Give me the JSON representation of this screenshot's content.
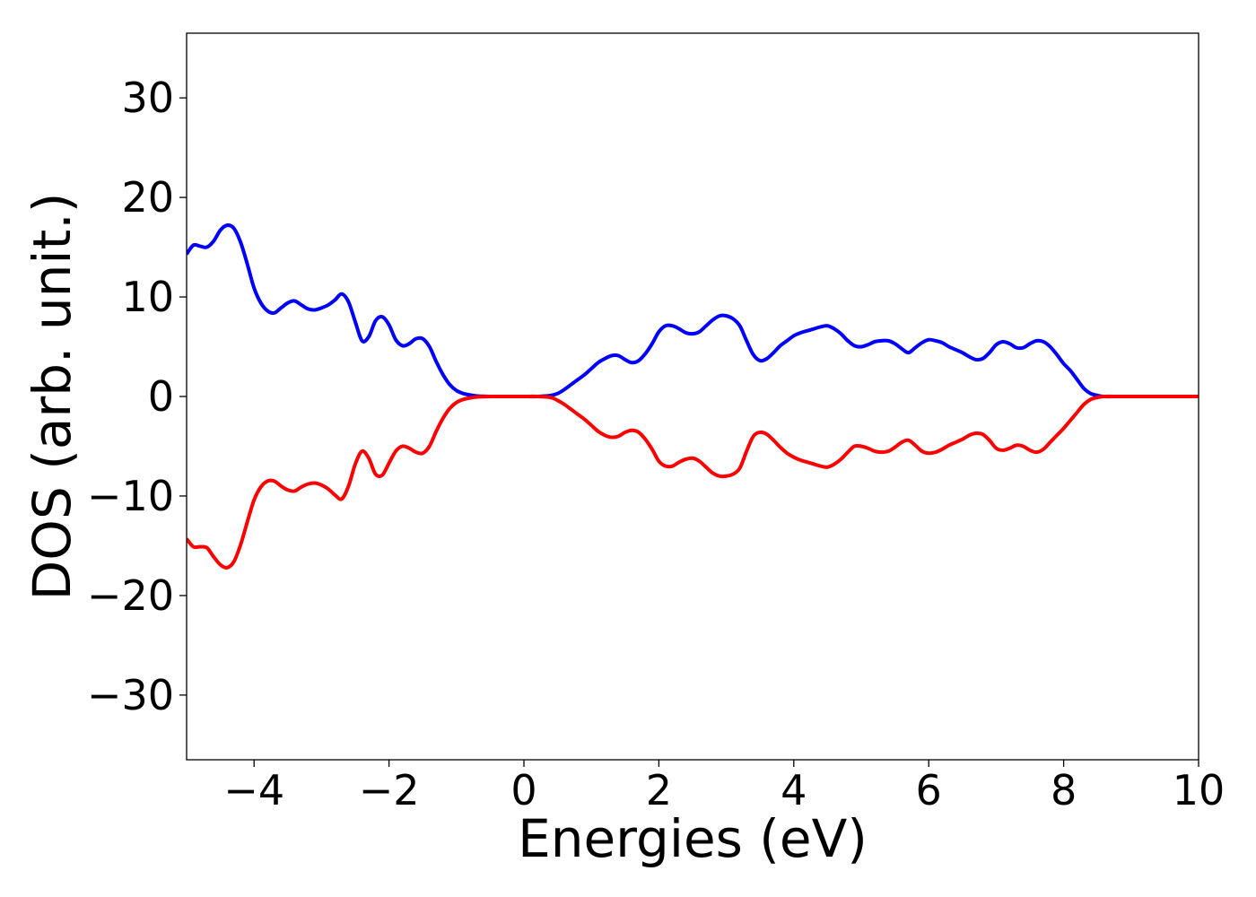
{
  "chart_data": {
    "type": "line",
    "title": "",
    "xlabel": "Energies (eV)",
    "ylabel": "DOS (arb. unit.)",
    "xlim": [
      -5,
      10
    ],
    "ylim": [
      -36.5,
      36.5
    ],
    "grid": false,
    "legend": "none",
    "xticks": [
      {
        "value": -4,
        "label": "−4"
      },
      {
        "value": -2,
        "label": "−2"
      },
      {
        "value": 0,
        "label": "0"
      },
      {
        "value": 2,
        "label": "2"
      },
      {
        "value": 4,
        "label": "4"
      },
      {
        "value": 6,
        "label": "6"
      },
      {
        "value": 8,
        "label": "8"
      },
      {
        "value": 10,
        "label": "10"
      }
    ],
    "yticks": [
      {
        "value": 30,
        "label": "30"
      },
      {
        "value": 20,
        "label": "20"
      },
      {
        "value": 10,
        "label": "10"
      },
      {
        "value": 0,
        "label": "0"
      },
      {
        "value": -10,
        "label": "−10"
      },
      {
        "value": -20,
        "label": "−20"
      },
      {
        "value": -30,
        "label": "−30"
      }
    ],
    "series": [
      {
        "color": "#0000ff",
        "x": [
          -5.0,
          -4.9,
          -4.8,
          -4.7,
          -4.6,
          -4.5,
          -4.4,
          -4.3,
          -4.2,
          -4.1,
          -4.0,
          -3.9,
          -3.8,
          -3.7,
          -3.6,
          -3.5,
          -3.4,
          -3.3,
          -3.2,
          -3.1,
          -3.0,
          -2.9,
          -2.8,
          -2.7,
          -2.6,
          -2.5,
          -2.4,
          -2.3,
          -2.2,
          -2.1,
          -2.0,
          -1.9,
          -1.8,
          -1.7,
          -1.6,
          -1.5,
          -1.4,
          -1.3,
          -1.2,
          -1.1,
          -1.0,
          -0.9,
          -0.8,
          -0.7,
          -0.6,
          -0.5,
          -0.4,
          -0.2,
          0.0,
          0.2,
          0.4,
          0.5,
          0.6,
          0.7,
          0.8,
          0.9,
          1.0,
          1.1,
          1.2,
          1.3,
          1.4,
          1.5,
          1.6,
          1.7,
          1.8,
          1.9,
          2.0,
          2.1,
          2.2,
          2.3,
          2.4,
          2.5,
          2.6,
          2.7,
          2.8,
          2.9,
          3.0,
          3.1,
          3.2,
          3.3,
          3.4,
          3.5,
          3.6,
          3.7,
          3.8,
          3.9,
          4.0,
          4.1,
          4.2,
          4.3,
          4.4,
          4.5,
          4.6,
          4.7,
          4.8,
          4.9,
          5.0,
          5.1,
          5.2,
          5.3,
          5.4,
          5.5,
          5.6,
          5.7,
          5.8,
          5.9,
          6.0,
          6.1,
          6.2,
          6.3,
          6.4,
          6.5,
          6.6,
          6.7,
          6.8,
          6.9,
          7.0,
          7.1,
          7.2,
          7.3,
          7.4,
          7.5,
          7.6,
          7.7,
          7.8,
          7.9,
          8.0,
          8.1,
          8.2,
          8.3,
          8.4,
          8.5,
          8.6,
          8.8,
          9.0,
          9.5,
          10.0
        ],
        "y": [
          14.3,
          15.2,
          15.1,
          15.0,
          15.6,
          16.7,
          17.2,
          16.9,
          15.5,
          13.3,
          10.9,
          9.4,
          8.6,
          8.4,
          8.9,
          9.4,
          9.6,
          9.2,
          8.8,
          8.7,
          8.9,
          9.2,
          9.7,
          10.3,
          9.5,
          7.5,
          5.6,
          6.0,
          7.6,
          8.0,
          7.2,
          5.7,
          5.1,
          5.3,
          5.8,
          5.8,
          5.0,
          3.5,
          2.2,
          1.2,
          0.6,
          0.3,
          0.15,
          0.05,
          0.02,
          0.0,
          0.0,
          0.0,
          0.0,
          0.0,
          0.1,
          0.3,
          0.7,
          1.2,
          1.7,
          2.2,
          2.8,
          3.4,
          3.8,
          4.1,
          4.1,
          3.7,
          3.4,
          3.6,
          4.3,
          5.3,
          6.5,
          7.1,
          7.1,
          6.8,
          6.4,
          6.3,
          6.5,
          7.1,
          7.7,
          8.1,
          8.1,
          7.8,
          7.1,
          5.6,
          4.2,
          3.6,
          3.8,
          4.4,
          5.1,
          5.6,
          6.1,
          6.4,
          6.6,
          6.8,
          7.0,
          7.1,
          6.8,
          6.3,
          5.6,
          5.1,
          5.0,
          5.2,
          5.5,
          5.6,
          5.6,
          5.3,
          4.8,
          4.4,
          4.9,
          5.4,
          5.7,
          5.6,
          5.4,
          5.0,
          4.7,
          4.4,
          4.0,
          3.7,
          3.8,
          4.4,
          5.2,
          5.5,
          5.3,
          4.9,
          4.9,
          5.3,
          5.6,
          5.5,
          5.0,
          4.2,
          3.3,
          2.6,
          1.7,
          0.8,
          0.3,
          0.1,
          0.0,
          0.0,
          0.0,
          0.0,
          0.0
        ]
      },
      {
        "color": "#ff0000",
        "x": [
          -5.0,
          -4.9,
          -4.8,
          -4.7,
          -4.6,
          -4.5,
          -4.4,
          -4.3,
          -4.2,
          -4.1,
          -4.0,
          -3.9,
          -3.8,
          -3.7,
          -3.6,
          -3.5,
          -3.4,
          -3.3,
          -3.2,
          -3.1,
          -3.0,
          -2.9,
          -2.8,
          -2.7,
          -2.6,
          -2.5,
          -2.4,
          -2.3,
          -2.2,
          -2.1,
          -2.0,
          -1.9,
          -1.8,
          -1.7,
          -1.6,
          -1.5,
          -1.4,
          -1.3,
          -1.2,
          -1.1,
          -1.0,
          -0.9,
          -0.8,
          -0.7,
          -0.6,
          -0.5,
          -0.4,
          -0.2,
          0.0,
          0.2,
          0.4,
          0.5,
          0.6,
          0.7,
          0.8,
          0.9,
          1.0,
          1.1,
          1.2,
          1.3,
          1.4,
          1.5,
          1.6,
          1.7,
          1.8,
          1.9,
          2.0,
          2.1,
          2.2,
          2.3,
          2.4,
          2.5,
          2.6,
          2.7,
          2.8,
          2.9,
          3.0,
          3.1,
          3.2,
          3.3,
          3.4,
          3.5,
          3.6,
          3.7,
          3.8,
          3.9,
          4.0,
          4.1,
          4.2,
          4.3,
          4.4,
          4.5,
          4.6,
          4.7,
          4.8,
          4.9,
          5.0,
          5.1,
          5.2,
          5.3,
          5.4,
          5.5,
          5.6,
          5.7,
          5.8,
          5.9,
          6.0,
          6.1,
          6.2,
          6.3,
          6.4,
          6.5,
          6.6,
          6.7,
          6.8,
          6.9,
          7.0,
          7.1,
          7.2,
          7.3,
          7.4,
          7.5,
          7.6,
          7.7,
          7.8,
          7.9,
          8.0,
          8.1,
          8.2,
          8.3,
          8.4,
          8.5,
          8.6,
          8.8,
          9.0,
          9.5,
          10.0
        ],
        "y": [
          -14.3,
          -15.1,
          -15.1,
          -15.2,
          -16.1,
          -16.9,
          -17.2,
          -16.6,
          -14.9,
          -12.6,
          -10.4,
          -9.1,
          -8.5,
          -8.5,
          -9.0,
          -9.4,
          -9.5,
          -9.1,
          -8.8,
          -8.7,
          -8.9,
          -9.3,
          -9.9,
          -10.3,
          -9.0,
          -6.8,
          -5.5,
          -6.2,
          -7.8,
          -7.9,
          -6.7,
          -5.5,
          -5.0,
          -5.2,
          -5.6,
          -5.7,
          -5.0,
          -3.5,
          -2.2,
          -1.2,
          -0.6,
          -0.3,
          -0.15,
          -0.05,
          -0.02,
          0.0,
          0.0,
          0.0,
          0.0,
          0.0,
          -0.1,
          -0.4,
          -0.8,
          -1.3,
          -1.8,
          -2.3,
          -2.9,
          -3.5,
          -3.9,
          -4.1,
          -4.0,
          -3.6,
          -3.4,
          -3.6,
          -4.3,
          -5.3,
          -6.5,
          -7.0,
          -7.0,
          -6.6,
          -6.3,
          -6.2,
          -6.5,
          -7.1,
          -7.7,
          -8.0,
          -8.0,
          -7.8,
          -7.2,
          -5.5,
          -4.0,
          -3.6,
          -3.8,
          -4.4,
          -5.1,
          -5.7,
          -6.1,
          -6.4,
          -6.6,
          -6.8,
          -7.0,
          -7.1,
          -6.8,
          -6.3,
          -5.6,
          -5.0,
          -5.0,
          -5.2,
          -5.5,
          -5.6,
          -5.5,
          -5.1,
          -4.6,
          -4.4,
          -4.9,
          -5.5,
          -5.7,
          -5.6,
          -5.3,
          -4.9,
          -4.6,
          -4.3,
          -3.9,
          -3.7,
          -3.8,
          -4.4,
          -5.2,
          -5.4,
          -5.2,
          -4.9,
          -5.0,
          -5.4,
          -5.6,
          -5.3,
          -4.6,
          -3.9,
          -3.2,
          -2.4,
          -1.6,
          -0.8,
          -0.3,
          -0.1,
          0.0,
          0.0,
          0.0,
          0.0,
          0.0
        ]
      }
    ]
  }
}
